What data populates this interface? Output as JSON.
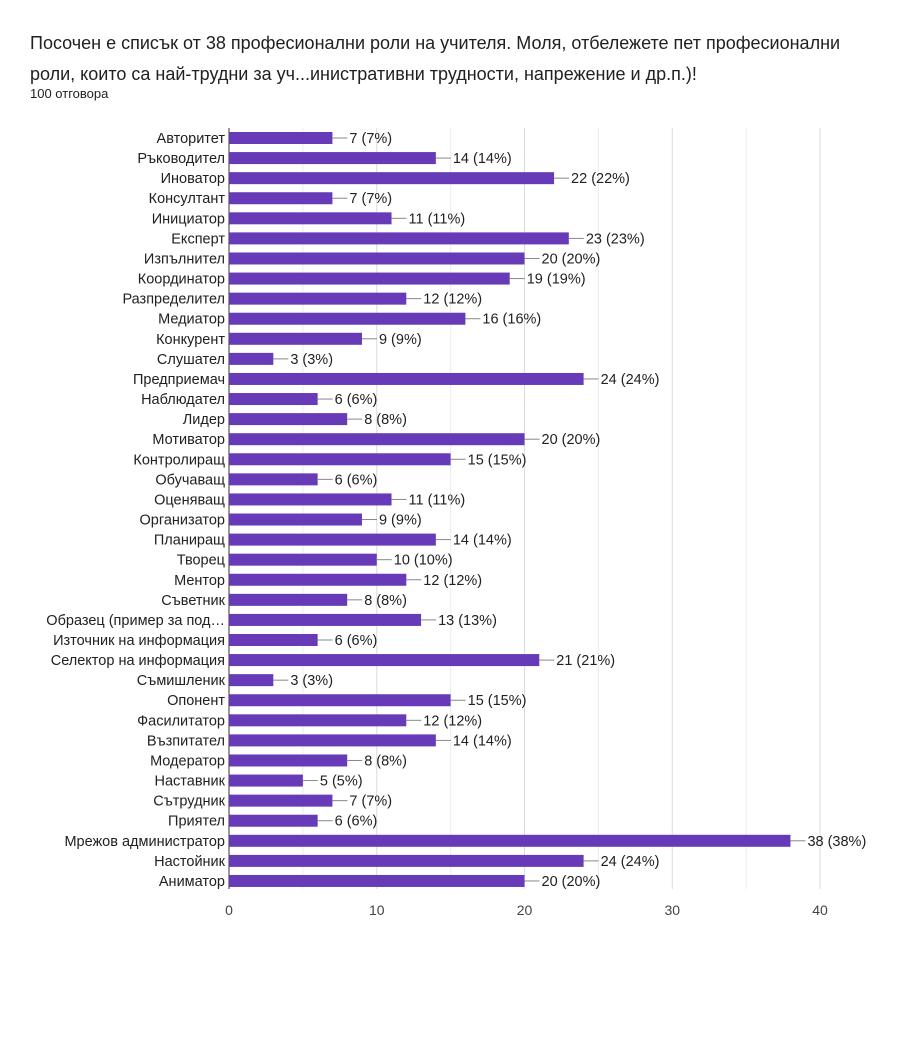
{
  "question": {
    "title": "Посочен е списък от 38 професионални роли на учителя. Моля, отбележете пет професионални роли, които са най-трудни за уч...инистративни трудности, напрежение и др.п.)!",
    "responses_label": "100 отговора"
  },
  "colors": {
    "bar": "#673ab7",
    "grid": "#e0e0e0",
    "text": "#202124",
    "axis_text": "#444444"
  },
  "chart_data": {
    "type": "bar",
    "orientation": "horizontal",
    "title": "",
    "xlabel": "",
    "ylabel": "",
    "xlim": [
      0,
      40
    ],
    "xticks": [
      "0",
      "10",
      "20",
      "30",
      "40"
    ],
    "grid": true,
    "legend": "none",
    "categories": [
      "Авторитет",
      "Ръководител",
      "Иноватор",
      "Консултант",
      "Инициатор",
      "Експерт",
      "Изпълнител",
      "Координатор",
      "Разпределител",
      "Медиатор",
      "Конкурент",
      "Слушател",
      "Предприемач",
      "Наблюдател",
      "Лидер",
      "Мотиватор",
      "Контролиращ",
      "Обучаващ",
      "Оценяващ",
      "Организатор",
      "Планиращ",
      "Творец",
      "Ментор",
      "Съветник",
      "Образец (пример за под…",
      "Източник на информация",
      "Селектор на информация",
      "Съмишленик",
      "Опонент",
      "Фасилитатор",
      "Възпитател",
      "Модератор",
      "Наставник",
      "Сътрудник",
      "Приятел",
      "Мрежов администратор",
      "Настойник",
      "Аниматор"
    ],
    "values": [
      7,
      14,
      22,
      7,
      11,
      23,
      20,
      19,
      12,
      16,
      9,
      3,
      24,
      6,
      8,
      20,
      15,
      6,
      11,
      9,
      14,
      10,
      12,
      8,
      13,
      6,
      21,
      3,
      15,
      12,
      14,
      8,
      5,
      7,
      6,
      38,
      24,
      20
    ],
    "data_labels": [
      "7 (7%)",
      "14 (14%)",
      "22 (22%)",
      "7 (7%)",
      "11 (11%)",
      "23 (23%)",
      "20 (20%)",
      "19 (19%)",
      "12 (12%)",
      "16 (16%)",
      "9 (9%)",
      "3 (3%)",
      "24 (24%)",
      "6 (6%)",
      "8 (8%)",
      "20 (20%)",
      "15 (15%)",
      "6 (6%)",
      "11 (11%)",
      "9 (9%)",
      "14 (14%)",
      "10 (10%)",
      "12 (12%)",
      "8 (8%)",
      "13 (13%)",
      "6 (6%)",
      "21 (21%)",
      "3 (3%)",
      "15 (15%)",
      "12 (12%)",
      "14 (14%)",
      "8 (8%)",
      "5 (5%)",
      "7 (7%)",
      "6 (6%)",
      "38 (38%)",
      "24 (24%)",
      "20 (20%)"
    ]
  }
}
